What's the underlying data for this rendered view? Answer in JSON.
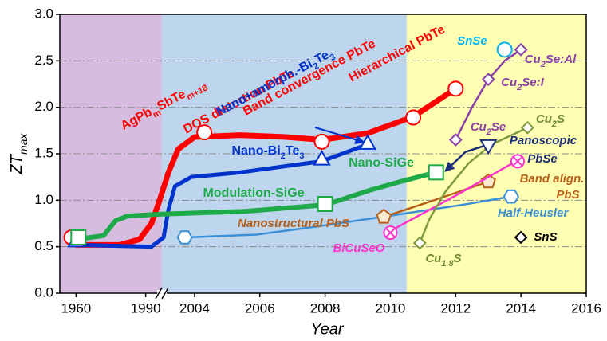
{
  "chart_data": {
    "type": "line",
    "x_label": "Year",
    "y_label_parts": [
      "ZT",
      "max"
    ],
    "xlim": [
      1953,
      2016
    ],
    "x_break": [
      1997,
      2003
    ],
    "xticks": [
      1960,
      1990,
      2004,
      2006,
      2008,
      2010,
      2012,
      2014,
      2016
    ],
    "ylim": [
      0,
      3
    ],
    "yticks": [
      {
        "value": 0,
        "label": "0.0"
      },
      0.5,
      {
        "value": 1,
        "label": "1.0"
      },
      1.5,
      {
        "value": 2,
        "label": "2.0"
      },
      2.5,
      {
        "value": 3,
        "label": "3.0"
      }
    ],
    "grid": true,
    "regions": [
      {
        "from": 1953,
        "to": 1997,
        "color": "#d6bde0"
      },
      {
        "from": 2003,
        "to": 2010.5,
        "color": "#bdd6ee"
      },
      {
        "from": 2010.5,
        "to": 2016,
        "color": "#ffffb4"
      }
    ],
    "series": [
      {
        "color": "#ff0000",
        "width": 7,
        "x": [
          1960,
          1978.8,
          1987.4,
          1992.5,
          1996,
          2003.2,
          2003.5,
          2004,
          2005.4,
          2006.8,
          2007.9,
          2009.3,
          2010.7,
          2012.0
        ],
        "values": [
          0.52,
          0.52,
          0.58,
          0.75,
          1.0,
          1.3,
          1.55,
          1.68,
          1.7,
          1.68,
          1.65,
          1.72,
          1.9,
          2.2
        ],
        "marker": "circle",
        "mx": [
          1958,
          2004.3,
          2007.9,
          2010.7,
          2012.0
        ],
        "my": [
          0.6,
          1.73,
          1.63,
          1.89,
          2.2
        ]
      },
      {
        "color": "#0033cc",
        "width": 5,
        "x": [
          1960,
          1992.5,
          2003.05,
          2003.2,
          2003.4,
          2003.9,
          2005.4,
          2007.9,
          2009.3
        ],
        "values": [
          0.52,
          0.5,
          0.6,
          0.9,
          1.15,
          1.25,
          1.3,
          1.42,
          1.6
        ],
        "marker": "triangle",
        "mx": [
          1960,
          2007.9,
          2009.3
        ],
        "my": [
          0.55,
          1.43,
          1.6
        ]
      },
      {
        "color": "#1faa4a",
        "width": 6,
        "x": [
          1960.9,
          1971.9,
          1977,
          1982.2,
          1996,
          2005.5,
          2008,
          2009.3,
          2010.3,
          2011.4
        ],
        "values": [
          0.58,
          0.62,
          0.78,
          0.83,
          0.85,
          0.88,
          0.95,
          1.1,
          1.2,
          1.3
        ],
        "marker": "square",
        "mx": [
          1961,
          2008,
          2011.4
        ],
        "my": [
          0.6,
          0.96,
          1.3
        ]
      },
      {
        "color": "#3b8fd6",
        "width": 2.5,
        "x": [
          2003.7,
          2005.9,
          2007.8,
          2010.3,
          2012.2,
          2013.7
        ],
        "values": [
          0.6,
          0.63,
          0.72,
          0.85,
          0.95,
          1.04
        ],
        "marker": "hexagon",
        "mx": [
          2003.7,
          2013.7
        ],
        "my": [
          0.6,
          1.04
        ]
      },
      {
        "color": "#b8601a",
        "width": 2.5,
        "x": [
          2009.8,
          2011.5,
          2013.0
        ],
        "values": [
          0.82,
          1.02,
          1.2
        ],
        "marker": "pentagon",
        "mx": [
          2009.8,
          2013.0
        ],
        "my": [
          0.82,
          1.2
        ]
      },
      {
        "color": "#ff33cc",
        "width": 2.5,
        "x": [
          2010.0,
          2012.0,
          2013.9
        ],
        "values": [
          0.67,
          1.05,
          1.43
        ],
        "marker": "circle-x",
        "mx": [
          2010.0,
          2013.9
        ],
        "my": [
          0.65,
          1.42
        ]
      },
      {
        "color": "#7e9a3c",
        "width": 2.5,
        "x": [
          2010.9,
          2011.2,
          2011.7,
          2012.4,
          2013.1,
          2014.2
        ],
        "values": [
          0.54,
          0.8,
          1.1,
          1.4,
          1.6,
          1.78
        ],
        "marker": "diamond",
        "mx": [
          2010.9,
          2014.2
        ],
        "my": [
          0.54,
          1.78
        ]
      },
      {
        "color": "#8a3fa8",
        "width": 2.5,
        "x": [
          2012.0,
          2012.5,
          2013.0,
          2013.5,
          2014.0
        ],
        "values": [
          1.65,
          2.0,
          2.3,
          2.5,
          2.62
        ],
        "marker": "diamond",
        "mx": [
          2012.0,
          2013.0,
          2014.0
        ],
        "my": [
          1.65,
          2.3,
          2.62
        ]
      },
      {
        "color": "#1c2e78",
        "width": 2.5,
        "x": [
          2013.0,
          2012.3,
          2011.7
        ],
        "values": [
          1.6,
          1.52,
          1.32
        ],
        "arrow": true,
        "marker": "triangle-down",
        "mx": [
          2013.0
        ],
        "my": [
          1.6
        ]
      },
      {
        "color": "#00b0f0",
        "marker": "circle",
        "mx": [
          2013.5
        ],
        "my": [
          2.62
        ]
      },
      {
        "color": "#000000",
        "marker": "diamond",
        "mx": [
          2014.0
        ],
        "my": [
          0.6
        ]
      }
    ],
    "annotations": [
      {
        "parts": [
          "AgPb",
          "m",
          "SbTe",
          "m+18"
        ],
        "color": "#ff0000"
      },
      {
        "parts": [
          "DOS distortion PbTe"
        ],
        "color": "#ff0000"
      },
      {
        "parts": [
          "Band convergence PbTe"
        ],
        "color": "#ff0000"
      },
      {
        "parts": [
          "Hierarchical PbTe"
        ],
        "color": "#ff0000"
      },
      {
        "parts": [
          "Nano+amorph.-Bi",
          "2",
          "Te",
          "3"
        ],
        "color": "#0033cc"
      },
      {
        "parts": [
          "Nano-Bi",
          "2",
          "Te",
          "3"
        ],
        "color": "#0033cc"
      },
      {
        "parts": [
          "Modulation-SiGe"
        ],
        "color": "#1faa4a"
      },
      {
        "parts": [
          "Nano-SiGe"
        ],
        "color": "#1faa4a"
      },
      {
        "parts": [
          "Nanostructural PbS"
        ],
        "color": "#b8601a"
      },
      {
        "parts": [
          "Half-Heusler"
        ],
        "color": "#3b8fd6"
      },
      {
        "parts": [
          "BiCuSeO"
        ],
        "color": "#ff33cc"
      },
      {
        "parts": [
          "Cu",
          "1.8",
          "S"
        ],
        "color": "#6f8a30"
      },
      {
        "parts": [
          "SnSe"
        ],
        "color": "#00b0f0"
      },
      {
        "parts": [
          "Cu",
          "2",
          "Se:Al"
        ],
        "color": "#8a3fa8"
      },
      {
        "parts": [
          "Cu",
          "2",
          "Se:I"
        ],
        "color": "#8a3fa8"
      },
      {
        "parts": [
          "Cu",
          "2",
          "Se"
        ],
        "color": "#8a3fa8"
      },
      {
        "parts": [
          "Cu",
          "2",
          "S"
        ],
        "color": "#6f8a30"
      },
      {
        "parts": [
          "Panoscopic"
        ],
        "color": "#1c2e78"
      },
      {
        "parts": [
          "PbSe"
        ],
        "color": "#1c2e78"
      },
      {
        "parts": [
          "Band align."
        ],
        "color": "#b8601a"
      },
      {
        "parts": [
          "PbS"
        ],
        "color": "#b8601a"
      },
      {
        "parts": [
          "SnS"
        ],
        "color": "#000000"
      }
    ]
  }
}
